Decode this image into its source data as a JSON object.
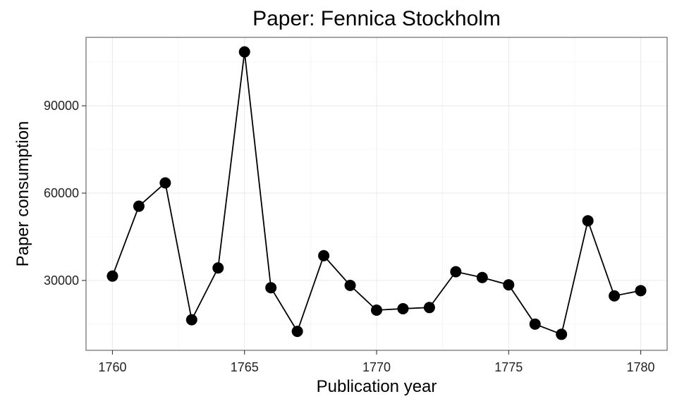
{
  "chart_data": {
    "type": "line",
    "title": "Paper: Fennica Stockholm",
    "xlabel": "Publication year",
    "ylabel": "Paper consumption",
    "x": [
      1760,
      1761,
      1762,
      1763,
      1764,
      1765,
      1766,
      1767,
      1768,
      1769,
      1770,
      1771,
      1772,
      1773,
      1774,
      1775,
      1776,
      1777,
      1778,
      1779,
      1780
    ],
    "series": [
      {
        "values": [
          31500,
          55500,
          63500,
          16500,
          34300,
          108500,
          27500,
          12500,
          38500,
          28300,
          19800,
          20300,
          20700,
          33000,
          31000,
          28500,
          15000,
          11500,
          50500,
          24700,
          26500
        ],
        "color": "#000000",
        "markers": true
      }
    ],
    "xlim": [
      1759,
      1781
    ],
    "ylim": [
      6000,
      113500
    ],
    "xticks": [
      1760,
      1765,
      1770,
      1775,
      1780
    ],
    "xtick_labels": [
      "1760",
      "1765",
      "1770",
      "1775",
      "1780"
    ],
    "yticks": [
      30000,
      60000,
      90000
    ],
    "ytick_labels": [
      "30000",
      "60000",
      "90000"
    ],
    "grid": true,
    "legend": "none"
  }
}
